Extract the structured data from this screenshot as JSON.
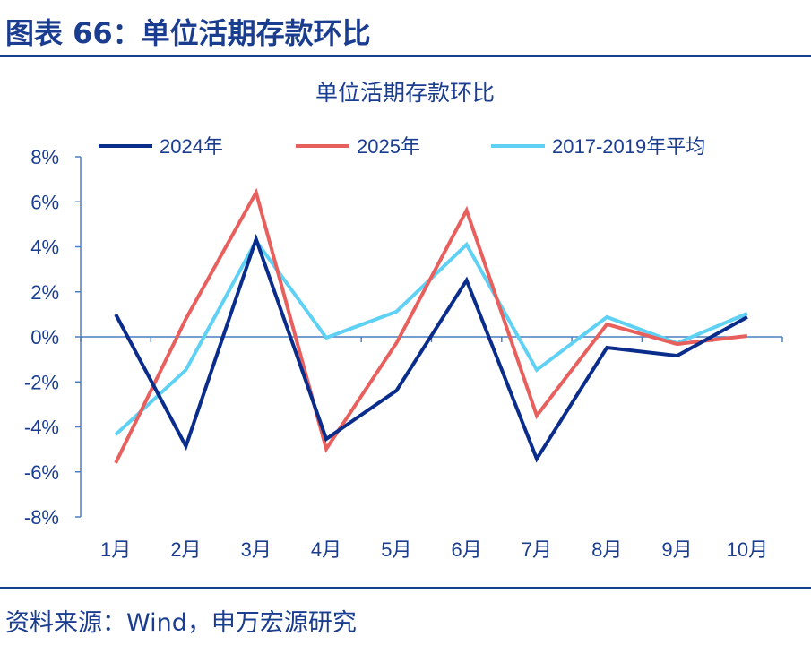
{
  "header": {
    "title": "图表 66：单位活期存款环比"
  },
  "footer": {
    "source": "资料来源：Wind，申万宏源研究"
  },
  "chart_data": {
    "type": "line",
    "title": "单位活期存款环比",
    "categories": [
      "1月",
      "2月",
      "3月",
      "4月",
      "5月",
      "6月",
      "7月",
      "8月",
      "9月",
      "10月"
    ],
    "yticks": [
      "8%",
      "6%",
      "4%",
      "2%",
      "0%",
      "-2%",
      "-4%",
      "-6%",
      "-8%"
    ],
    "ylim": [
      -8,
      8
    ],
    "yunit": "%",
    "legend_position": "top",
    "grid": false,
    "series": [
      {
        "name": "2024年",
        "color": "#0a2d8c",
        "values": [
          1.0,
          -4.86,
          4.34,
          -4.54,
          -2.39,
          2.51,
          -5.42,
          -0.48,
          -0.84,
          0.88
        ]
      },
      {
        "name": "2025年",
        "color": "#e8605d",
        "values": [
          -5.6,
          0.8,
          6.41,
          -4.98,
          -0.28,
          5.62,
          -3.5,
          0.56,
          -0.32,
          0.04
        ]
      },
      {
        "name": "2017-2019年平均",
        "color": "#5fd1f5",
        "values": [
          -4.34,
          -1.47,
          4.26,
          -0.04,
          1.12,
          4.1,
          -1.47,
          0.88,
          -0.28,
          1.04
        ]
      }
    ]
  }
}
